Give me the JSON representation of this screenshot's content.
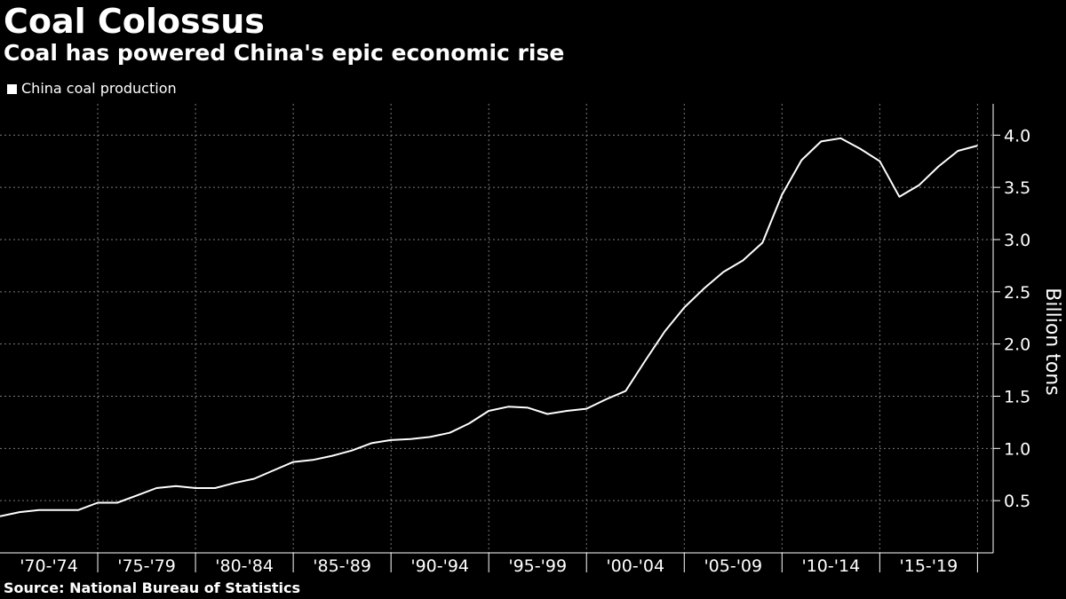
{
  "header": {
    "title": "Coal Colossus",
    "subtitle": "Coal has powered China's epic economic rise"
  },
  "legend": {
    "label": "China coal production"
  },
  "source": "Source: National Bureau of Statistics",
  "colors": {
    "background": "#000000",
    "line": "#ffffff",
    "grid": "#7a7a7a"
  },
  "chart_data": {
    "type": "line",
    "title": "Coal Colossus",
    "subtitle": "Coal has powered China's epic economic rise",
    "ylabel": "Billion tons",
    "xlabel": "",
    "ylim": [
      0,
      4.3
    ],
    "xlim": [
      1970,
      2020.8
    ],
    "yticks": [
      0.5,
      1.0,
      1.5,
      2.0,
      2.5,
      3.0,
      3.5,
      4.0
    ],
    "ytick_labels": [
      "0.5",
      "1.0",
      "1.5",
      "2.0",
      "2.5",
      "3.0",
      "3.5",
      "4.0"
    ],
    "x_categories": [
      "'70-'74",
      "'75-'79",
      "'80-'84",
      "'85-'89",
      "'90-'94",
      "'95-'99",
      "'00-'04",
      "'05-'09",
      "'10-'14",
      "'15-'19"
    ],
    "x_category_starts": [
      1970,
      1975,
      1980,
      1985,
      1990,
      1995,
      2000,
      2005,
      2010,
      2015
    ],
    "x_category_end": 2020,
    "grid": true,
    "legend_position": "top-left",
    "series": [
      {
        "name": "China coal production",
        "x": [
          1970,
          1971,
          1972,
          1973,
          1974,
          1975,
          1976,
          1977,
          1978,
          1979,
          1980,
          1981,
          1982,
          1983,
          1984,
          1985,
          1986,
          1987,
          1988,
          1989,
          1990,
          1991,
          1992,
          1993,
          1994,
          1995,
          1996,
          1997,
          1998,
          1999,
          2000,
          2001,
          2002,
          2003,
          2004,
          2005,
          2006,
          2007,
          2008,
          2009,
          2010,
          2011,
          2012,
          2013,
          2014,
          2015,
          2016,
          2017,
          2018,
          2019,
          2020
        ],
        "values": [
          0.35,
          0.39,
          0.41,
          0.41,
          0.41,
          0.48,
          0.48,
          0.55,
          0.62,
          0.64,
          0.62,
          0.62,
          0.67,
          0.71,
          0.79,
          0.87,
          0.89,
          0.93,
          0.98,
          1.05,
          1.08,
          1.09,
          1.11,
          1.15,
          1.24,
          1.36,
          1.4,
          1.39,
          1.33,
          1.36,
          1.38,
          1.47,
          1.55,
          1.84,
          2.12,
          2.35,
          2.53,
          2.69,
          2.8,
          2.97,
          3.43,
          3.76,
          3.94,
          3.97,
          3.87,
          3.75,
          3.41,
          3.52,
          3.7,
          3.85,
          3.9
        ]
      }
    ]
  }
}
